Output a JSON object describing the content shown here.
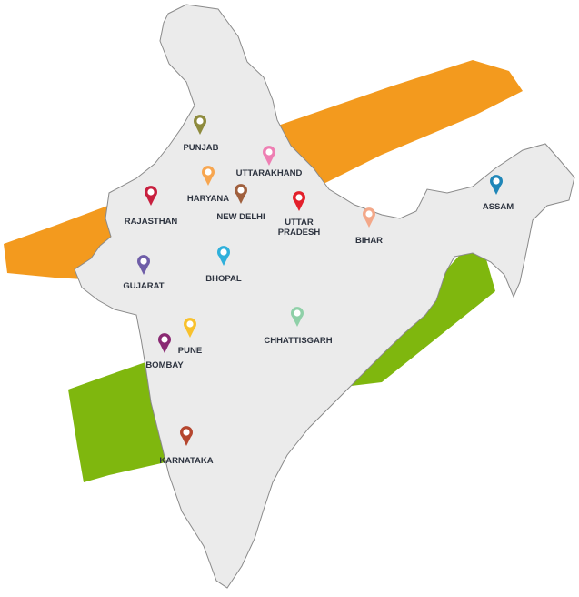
{
  "map": {
    "colors": {
      "land": "#ebebeb",
      "border": "#8a8a8a",
      "saffron": "#f39a1e",
      "green": "#7fb70e",
      "label": "#2e3440"
    },
    "markers": [
      {
        "label": "PUNJAB",
        "color": "#8e8b3e"
      },
      {
        "label": "UTTARAKHAND",
        "color": "#ee7fb3"
      },
      {
        "label": "HARYANA",
        "color": "#f7a650"
      },
      {
        "label": "NEW DELHI",
        "color": "#a0603e"
      },
      {
        "label": "RAJASTHAN",
        "color": "#c8203f"
      },
      {
        "label": "UTTAR",
        "label2": "PRADESH",
        "color": "#e3202b"
      },
      {
        "label": "BIHAR",
        "color": "#f3a889"
      },
      {
        "label": "ASSAM",
        "color": "#1f86b8"
      },
      {
        "label": "GUJARAT",
        "color": "#6f5ea8"
      },
      {
        "label": "BHOPAL",
        "color": "#2fb0db"
      },
      {
        "label": "PUNE",
        "color": "#f8c12d"
      },
      {
        "label": "BOMBAY",
        "color": "#8a2a73"
      },
      {
        "label": "CHHATTISGARH",
        "color": "#8fd0a8"
      },
      {
        "label": "KARNATAKA",
        "color": "#b5462e"
      }
    ]
  }
}
